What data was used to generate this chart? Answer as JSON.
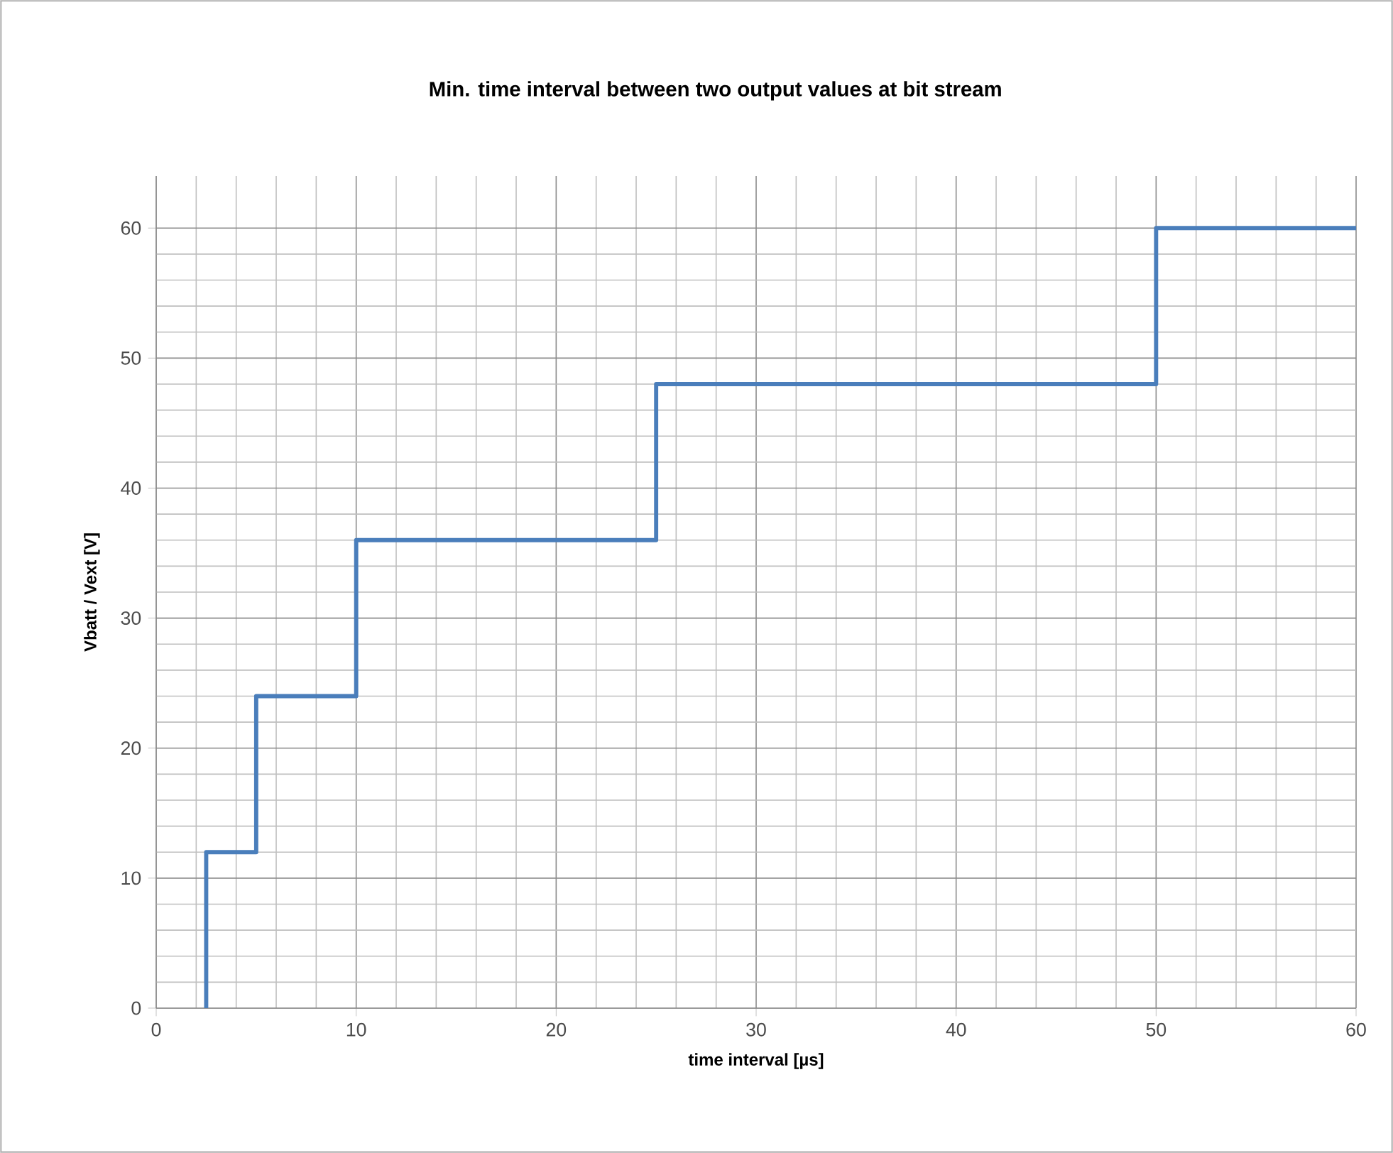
{
  "chart_data": {
    "type": "line",
    "title": "Min. time interval between two output values at bit stream",
    "xlabel": "time interval [µs]",
    "ylabel": "Vbatt / Vext [V]",
    "x": [
      2.5,
      2.5,
      5,
      5,
      10,
      10,
      25,
      25,
      50,
      50,
      60
    ],
    "series": [
      {
        "color": "#4a7ebb",
        "values": [
          0,
          12,
          12,
          24,
          24,
          36,
          36,
          48,
          48,
          60,
          60
        ]
      }
    ],
    "xlim": [
      0,
      60
    ],
    "ylim": [
      0,
      64
    ],
    "xticks": [
      0,
      10,
      20,
      30,
      40,
      50,
      60
    ],
    "yticks": [
      0,
      10,
      20,
      30,
      40,
      50,
      60
    ],
    "grid": true
  }
}
